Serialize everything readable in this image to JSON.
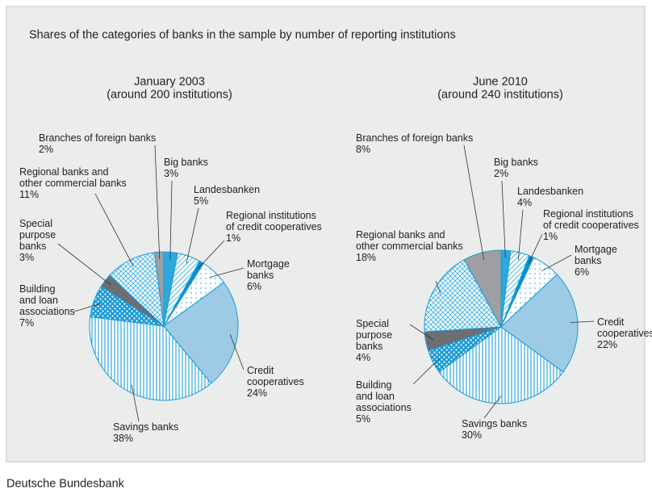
{
  "title": "Shares of the categories of banks in the sample by number of reporting institutions",
  "source": "Deutsche Bundesbank",
  "chart_data": [
    {
      "type": "pie",
      "title": "January 2003",
      "subtitle": "(around 200 institutions)",
      "categories": [
        "Big banks",
        "Landesbanken",
        "Regional institutions\nof credit cooperatives",
        "Mortgage\nbanks",
        "Credit\ncooperatives",
        "Savings banks",
        "Building\nand loan\nassociations",
        "Special\npurpose\nbanks",
        "Regional banks and\nother commercial banks",
        "Branches of foreign banks"
      ],
      "values": [
        3,
        5,
        1,
        6,
        24,
        38,
        7,
        3,
        11,
        2
      ],
      "value_labels": [
        "3%",
        "5%",
        "1%",
        "6%",
        "24%",
        "38%",
        "7%",
        "3%",
        "11%",
        "2%"
      ],
      "colors": [
        "#2fa8dc",
        "#4fb8e6",
        "#0a8fd0",
        "#4fb8e6",
        "#9dcbe6",
        "#2fa8dc",
        "#1a9ad6",
        "#6d6e71",
        "#4fb8e6",
        "#9d9fa2"
      ],
      "patterns": [
        "solid",
        "hatch",
        "solid",
        "dots",
        "solid",
        "vlines",
        "dots-inverse",
        "solid",
        "crosshatch",
        "solid"
      ]
    },
    {
      "type": "pie",
      "title": "June 2010",
      "subtitle": "(around 240 institutions)",
      "categories": [
        "Big banks",
        "Landesbanken",
        "Regional institutions\nof credit cooperatives",
        "Mortgage\nbanks",
        "Credit\ncooperatives",
        "Savings banks",
        "Building\nand loan\nassociations",
        "Special\npurpose\nbanks",
        "Regional banks and\nother commercial banks",
        "Branches of foreign banks"
      ],
      "values": [
        2,
        4,
        1,
        6,
        22,
        30,
        5,
        4,
        18,
        8
      ],
      "value_labels": [
        "2%",
        "4%",
        "1%",
        "6%",
        "22%",
        "30%",
        "5%",
        "4%",
        "18%",
        "8%"
      ],
      "colors": [
        "#2fa8dc",
        "#4fb8e6",
        "#0a8fd0",
        "#4fb8e6",
        "#9dcbe6",
        "#2fa8dc",
        "#1a9ad6",
        "#6d6e71",
        "#4fb8e6",
        "#9d9fa2"
      ],
      "patterns": [
        "solid",
        "hatch",
        "solid",
        "dots",
        "solid",
        "vlines",
        "dots-inverse",
        "solid",
        "crosshatch",
        "solid"
      ]
    }
  ]
}
